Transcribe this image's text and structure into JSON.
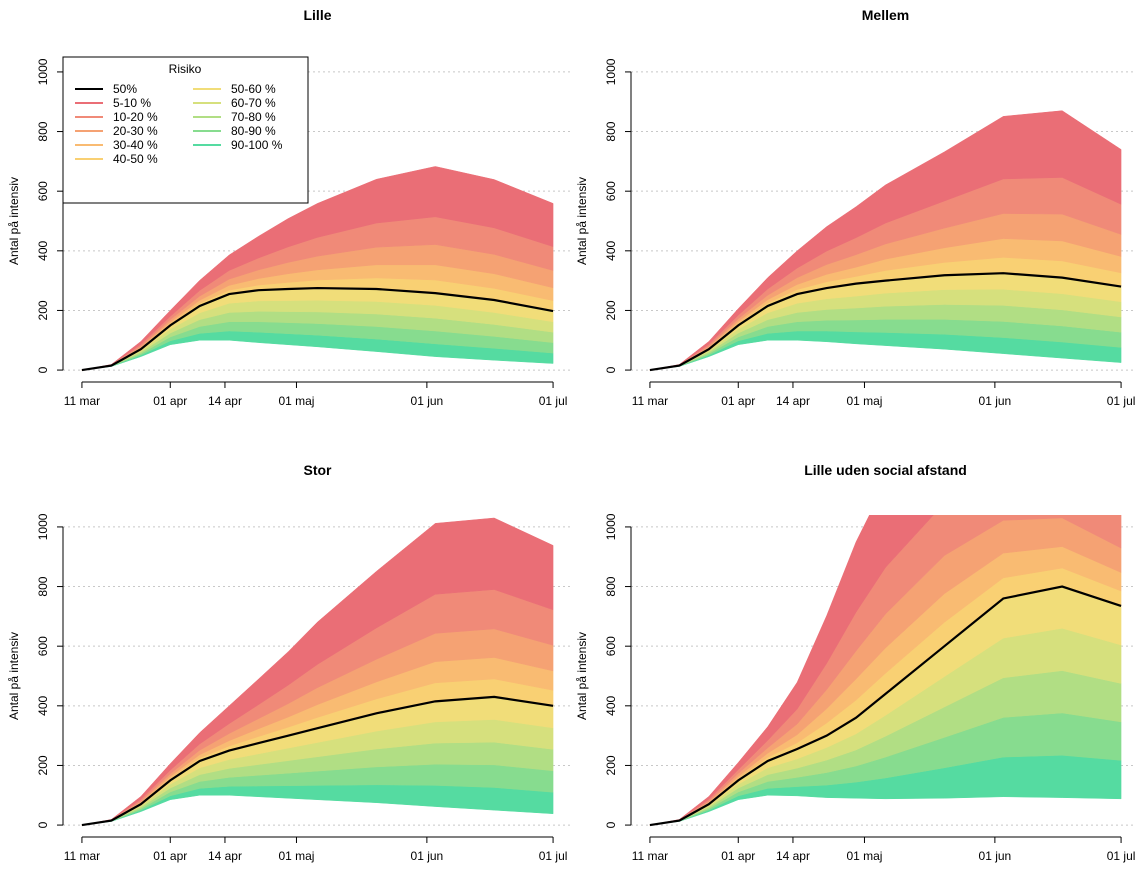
{
  "chart_data": [
    {
      "type": "fan",
      "title": "Lille",
      "y_label": "Antal på intensiv",
      "x": [
        0,
        7,
        14,
        21,
        28,
        35,
        42,
        49,
        56,
        70,
        84,
        98,
        112
      ],
      "xlim": [
        -4.5,
        116.5
      ],
      "xticks": [
        {
          "value": 0,
          "label": "11 mar"
        },
        {
          "value": 21,
          "label": "01 apr"
        },
        {
          "value": 34,
          "label": "14 apr"
        },
        {
          "value": 51,
          "label": "01 maj"
        },
        {
          "value": 82,
          "label": "01 jun"
        },
        {
          "value": 112,
          "label": "01 jul"
        }
      ],
      "ylim": [
        -40,
        1040
      ],
      "yticks": [
        0,
        200,
        400,
        600,
        800,
        1000
      ],
      "grid": true,
      "legend": {
        "title": "Risiko",
        "corner": "top-left",
        "labels": [
          "50%",
          "5-10 %",
          "10-20 %",
          "20-30 %",
          "30-40 %",
          "40-50 %",
          "50-60 %",
          "60-70 %",
          "70-80 %",
          "80-90 %",
          "90-100 %"
        ],
        "colors": [
          "#000000",
          "#ea6e76",
          "#f08a78",
          "#f5a273",
          "#f9bb72",
          "#f9d073",
          "#f1dd79",
          "#d6e07d",
          "#b1de84",
          "#87dc8f",
          "#55dba1"
        ]
      },
      "base": [
        0,
        12,
        45,
        85,
        100,
        100,
        92,
        85,
        78,
        62,
        45,
        33,
        22
      ],
      "series": [
        {
          "values": [
            0,
            15,
            70,
            150,
            215,
            255,
            268,
            272,
            275,
            272,
            258,
            235,
            198
          ]
        },
        {
          "values": [
            0,
            1,
            10,
            20,
            34,
            52,
            73,
            95,
            114,
            147,
            169,
            162,
            145
          ]
        },
        {
          "values": [
            0,
            1,
            6,
            11,
            19,
            29,
            40,
            52,
            63,
            81,
            93,
            89,
            80
          ]
        },
        {
          "values": [
            0,
            0,
            4,
            8,
            14,
            21,
            29,
            38,
            46,
            59,
            68,
            65,
            58
          ]
        },
        {
          "values": [
            0,
            0,
            3,
            6,
            10,
            16,
            22,
            29,
            34,
            44,
            51,
            49,
            43
          ]
        },
        {
          "values": [
            0,
            0,
            3,
            5,
            9,
            13,
            18,
            24,
            29,
            37,
            42,
            41,
            36
          ]
        },
        {
          "values": [
            0,
            1,
            5,
            13,
            23,
            31,
            35,
            37,
            39,
            42,
            43,
            40,
            35
          ]
        },
        {
          "values": [
            0,
            1,
            5,
            13,
            23,
            31,
            35,
            37,
            39,
            42,
            43,
            40,
            35
          ]
        },
        {
          "values": [
            0,
            1,
            5,
            13,
            23,
            31,
            35,
            37,
            39,
            42,
            43,
            40,
            35
          ]
        },
        {
          "values": [
            0,
            1,
            5,
            13,
            23,
            31,
            35,
            37,
            39,
            42,
            43,
            40,
            35
          ]
        },
        {
          "values": [
            0,
            1,
            5,
            13,
            23,
            31,
            35,
            37,
            39,
            42,
            43,
            40,
            35
          ]
        }
      ]
    },
    {
      "type": "fan",
      "title": "Mellem",
      "y_label": "Antal på intensiv",
      "x": [
        0,
        7,
        14,
        21,
        28,
        35,
        42,
        49,
        56,
        70,
        84,
        98,
        112
      ],
      "xlim": [
        -4.5,
        116.5
      ],
      "xticks": [
        {
          "value": 0,
          "label": "11 mar"
        },
        {
          "value": 21,
          "label": "01 apr"
        },
        {
          "value": 34,
          "label": "14 apr"
        },
        {
          "value": 51,
          "label": "01 maj"
        },
        {
          "value": 82,
          "label": "01 jun"
        },
        {
          "value": 112,
          "label": "01 jul"
        }
      ],
      "ylim": [
        -40,
        1040
      ],
      "yticks": [
        0,
        200,
        400,
        600,
        800,
        1000
      ],
      "grid": true,
      "base": [
        0,
        12,
        45,
        85,
        100,
        100,
        95,
        88,
        82,
        70,
        55,
        40,
        25
      ],
      "series": [
        {
          "values": [
            0,
            15,
            70,
            150,
            215,
            255,
            275,
            290,
            300,
            318,
            325,
            310,
            280
          ]
        },
        {
          "values": [
            0,
            1,
            10,
            22,
            38,
            58,
            82,
            104,
            128,
            165,
            210,
            224,
            184
          ]
        },
        {
          "values": [
            0,
            1,
            6,
            12,
            21,
            32,
            45,
            57,
            70,
            91,
            116,
            123,
            101
          ]
        },
        {
          "values": [
            0,
            0,
            4,
            9,
            15,
            23,
            33,
            42,
            51,
            66,
            84,
            90,
            74
          ]
        },
        {
          "values": [
            0,
            0,
            3,
            7,
            11,
            17,
            25,
            31,
            38,
            49,
            63,
            67,
            55
          ]
        },
        {
          "values": [
            0,
            0,
            3,
            6,
            10,
            15,
            21,
            26,
            32,
            41,
            53,
            56,
            46
          ]
        },
        {
          "values": [
            0,
            1,
            5,
            13,
            23,
            31,
            36,
            40,
            44,
            50,
            54,
            54,
            51
          ]
        },
        {
          "values": [
            0,
            1,
            5,
            13,
            23,
            31,
            36,
            40,
            44,
            50,
            54,
            54,
            51
          ]
        },
        {
          "values": [
            0,
            1,
            5,
            13,
            23,
            31,
            36,
            40,
            44,
            50,
            54,
            54,
            51
          ]
        },
        {
          "values": [
            0,
            1,
            5,
            13,
            23,
            31,
            36,
            40,
            44,
            50,
            54,
            54,
            51
          ]
        },
        {
          "values": [
            0,
            1,
            5,
            13,
            23,
            31,
            36,
            40,
            44,
            50,
            54,
            54,
            51
          ]
        }
      ]
    },
    {
      "type": "fan",
      "title": "Stor",
      "y_label": "Antal på intensiv",
      "x": [
        0,
        7,
        14,
        21,
        28,
        35,
        42,
        49,
        56,
        70,
        84,
        98,
        112
      ],
      "xlim": [
        -4.5,
        116.5
      ],
      "xticks": [
        {
          "value": 0,
          "label": "11 mar"
        },
        {
          "value": 21,
          "label": "01 apr"
        },
        {
          "value": 34,
          "label": "14 apr"
        },
        {
          "value": 51,
          "label": "01 maj"
        },
        {
          "value": 82,
          "label": "01 jun"
        },
        {
          "value": 112,
          "label": "01 jul"
        }
      ],
      "ylim": [
        -40,
        1040
      ],
      "yticks": [
        0,
        200,
        400,
        600,
        800,
        1000
      ],
      "grid": true,
      "base": [
        0,
        12,
        45,
        85,
        100,
        100,
        95,
        90,
        85,
        75,
        62,
        50,
        38
      ],
      "series": [
        {
          "values": [
            0,
            15,
            70,
            150,
            215,
            250,
            275,
            300,
            325,
            375,
            415,
            430,
            400
          ]
        },
        {
          "values": [
            0,
            1,
            10,
            22,
            38,
            60,
            86,
            112,
            142,
            190,
            238,
            240,
            216
          ]
        },
        {
          "values": [
            0,
            1,
            6,
            12,
            21,
            33,
            47,
            62,
            78,
            105,
            131,
            132,
            119
          ]
        },
        {
          "values": [
            0,
            0,
            4,
            9,
            15,
            24,
            34,
            45,
            57,
            76,
            95,
            96,
            86
          ]
        },
        {
          "values": [
            0,
            0,
            3,
            7,
            11,
            18,
            26,
            34,
            43,
            57,
            71,
            72,
            65
          ]
        },
        {
          "values": [
            0,
            0,
            3,
            6,
            10,
            15,
            22,
            28,
            36,
            48,
            60,
            60,
            54
          ]
        },
        {
          "values": [
            0,
            1,
            5,
            13,
            23,
            30,
            36,
            42,
            48,
            60,
            71,
            76,
            72
          ]
        },
        {
          "values": [
            0,
            1,
            5,
            13,
            23,
            30,
            36,
            42,
            48,
            60,
            71,
            76,
            72
          ]
        },
        {
          "values": [
            0,
            1,
            5,
            13,
            23,
            30,
            36,
            42,
            48,
            60,
            71,
            76,
            72
          ]
        },
        {
          "values": [
            0,
            1,
            5,
            13,
            23,
            30,
            36,
            42,
            48,
            60,
            71,
            76,
            72
          ]
        },
        {
          "values": [
            0,
            1,
            5,
            13,
            23,
            30,
            36,
            42,
            48,
            60,
            71,
            76,
            72
          ]
        }
      ]
    },
    {
      "type": "fan",
      "title": "Lille uden social afstand",
      "y_label": "Antal på intensiv",
      "x": [
        0,
        7,
        14,
        21,
        28,
        35,
        42,
        49,
        56,
        70,
        84,
        98,
        112
      ],
      "xlim": [
        -4.5,
        116.5
      ],
      "xticks": [
        {
          "value": 0,
          "label": "11 mar"
        },
        {
          "value": 21,
          "label": "01 apr"
        },
        {
          "value": 34,
          "label": "14 apr"
        },
        {
          "value": 51,
          "label": "01 maj"
        },
        {
          "value": 82,
          "label": "01 jun"
        },
        {
          "value": 112,
          "label": "01 jul"
        }
      ],
      "ylim": [
        -40,
        1040
      ],
      "yticks": [
        0,
        200,
        400,
        600,
        800,
        1000
      ],
      "grid": true,
      "base": [
        0,
        12,
        45,
        85,
        100,
        98,
        92,
        90,
        88,
        90,
        95,
        92,
        88
      ],
      "series": [
        {
          "values": [
            0,
            15,
            70,
            150,
            215,
            255,
            300,
            360,
            440,
            600,
            760,
            800,
            735
          ]
        },
        {
          "values": [
            0,
            1,
            10,
            24,
            46,
            90,
            160,
            236,
            284,
            320,
            276,
            240,
            206
          ]
        },
        {
          "values": [
            0,
            1,
            6,
            13,
            25,
            50,
            88,
            130,
            156,
            176,
            152,
            132,
            113
          ]
        },
        {
          "values": [
            0,
            0,
            4,
            10,
            18,
            36,
            64,
            94,
            114,
            128,
            110,
            96,
            82
          ]
        },
        {
          "values": [
            0,
            0,
            3,
            7,
            14,
            27,
            48,
            71,
            85,
            96,
            83,
            72,
            62
          ]
        },
        {
          "values": [
            0,
            0,
            3,
            6,
            12,
            23,
            40,
            59,
            71,
            80,
            69,
            60,
            52
          ]
        },
        {
          "values": [
            0,
            1,
            5,
            13,
            23,
            31,
            42,
            54,
            70,
            102,
            133,
            142,
            129
          ]
        },
        {
          "values": [
            0,
            1,
            5,
            13,
            23,
            31,
            42,
            54,
            70,
            102,
            133,
            142,
            129
          ]
        },
        {
          "values": [
            0,
            1,
            5,
            13,
            23,
            31,
            42,
            54,
            70,
            102,
            133,
            142,
            129
          ]
        },
        {
          "values": [
            0,
            1,
            5,
            13,
            23,
            31,
            42,
            54,
            70,
            102,
            133,
            142,
            129
          ]
        },
        {
          "values": [
            0,
            1,
            5,
            13,
            23,
            31,
            42,
            54,
            70,
            102,
            133,
            142,
            129
          ]
        }
      ]
    }
  ]
}
